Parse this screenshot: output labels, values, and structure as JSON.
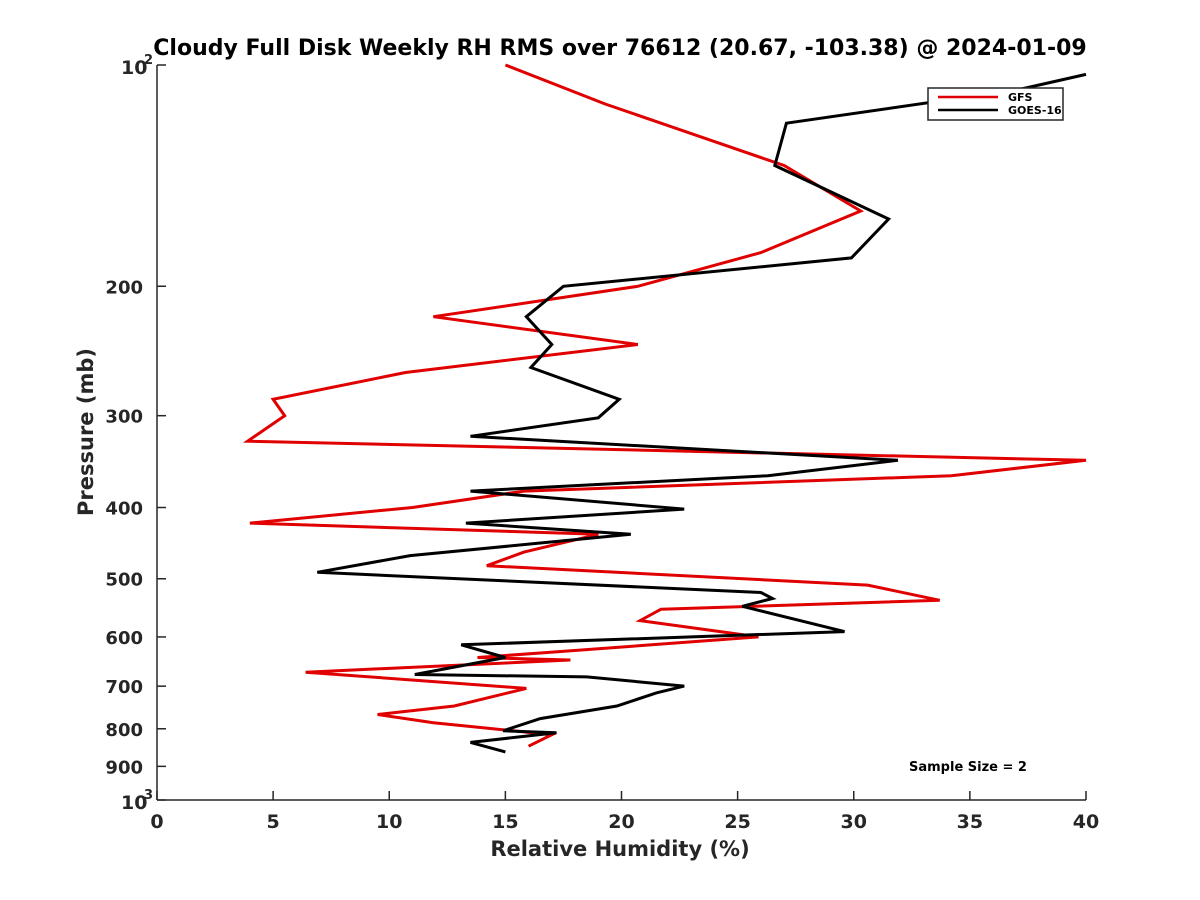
{
  "chart_data": {
    "type": "line",
    "title": "Cloudy Full Disk Weekly RH RMS over 76612 (20.67, -103.38) @ 2024-01-09",
    "xlabel": "Relative Humidity (%)",
    "ylabel": "Pressure (mb)",
    "xlim": [
      0,
      40
    ],
    "ylim": [
      100,
      1000
    ],
    "yscale": "log",
    "y_reversed": true,
    "grid": false,
    "legend_position": "top-right",
    "x_ticks": [
      "0",
      "5",
      "10",
      "15",
      "20",
      "25",
      "30",
      "35",
      "40"
    ],
    "y_ticks": [
      {
        "value": 100,
        "base": "10",
        "exp": "2"
      },
      {
        "value": 200,
        "label": "200"
      },
      {
        "value": 300,
        "label": "300"
      },
      {
        "value": 400,
        "label": "400"
      },
      {
        "value": 500,
        "label": "500"
      },
      {
        "value": 600,
        "label": "600"
      },
      {
        "value": 700,
        "label": "700"
      },
      {
        "value": 800,
        "label": "800"
      },
      {
        "value": 900,
        "label": "900"
      },
      {
        "value": 1000,
        "base": "10",
        "exp": "3"
      }
    ],
    "series": [
      {
        "name": "GFS",
        "color": "#e00000",
        "points": [
          [
            15.0,
            100
          ],
          [
            19.3,
            113
          ],
          [
            27.0,
            137
          ],
          [
            30.3,
            158
          ],
          [
            26.0,
            180
          ],
          [
            20.7,
            200
          ],
          [
            11.9,
            220
          ],
          [
            20.7,
            240
          ],
          [
            10.7,
            262
          ],
          [
            5.0,
            285
          ],
          [
            5.5,
            300
          ],
          [
            3.9,
            325
          ],
          [
            40.0,
            345
          ],
          [
            34.2,
            362
          ],
          [
            15.8,
            380
          ],
          [
            11.0,
            400
          ],
          [
            4.0,
            420
          ],
          [
            19.0,
            435
          ],
          [
            15.8,
            460
          ],
          [
            14.2,
            480
          ],
          [
            30.6,
            510
          ],
          [
            33.7,
            535
          ],
          [
            21.7,
            550
          ],
          [
            20.8,
            570
          ],
          [
            25.9,
            600
          ],
          [
            16.8,
            630
          ],
          [
            13.8,
            640
          ],
          [
            17.8,
            645
          ],
          [
            6.4,
            670
          ],
          [
            15.9,
            705
          ],
          [
            12.8,
            745
          ],
          [
            9.5,
            765
          ],
          [
            11.9,
            785
          ],
          [
            17.0,
            815
          ],
          [
            16.0,
            845
          ]
        ]
      },
      {
        "name": "GOES-16",
        "color": "#000000",
        "points": [
          [
            40.0,
            103
          ],
          [
            37.1,
            108
          ],
          [
            27.1,
            120
          ],
          [
            26.6,
            137
          ],
          [
            31.5,
            162
          ],
          [
            29.9,
            183
          ],
          [
            17.5,
            200
          ],
          [
            15.9,
            220
          ],
          [
            17.0,
            240
          ],
          [
            16.1,
            258
          ],
          [
            19.9,
            285
          ],
          [
            19.0,
            302
          ],
          [
            13.5,
            320
          ],
          [
            31.9,
            345
          ],
          [
            26.3,
            362
          ],
          [
            13.5,
            380
          ],
          [
            22.7,
            402
          ],
          [
            13.3,
            420
          ],
          [
            20.4,
            435
          ],
          [
            10.9,
            465
          ],
          [
            6.9,
            490
          ],
          [
            26.0,
            522
          ],
          [
            26.5,
            532
          ],
          [
            25.2,
            545
          ],
          [
            29.6,
            590
          ],
          [
            13.1,
            615
          ],
          [
            15.0,
            640
          ],
          [
            11.1,
            675
          ],
          [
            18.5,
            680
          ],
          [
            22.7,
            700
          ],
          [
            21.5,
            715
          ],
          [
            19.8,
            745
          ],
          [
            16.5,
            775
          ],
          [
            14.9,
            805
          ],
          [
            17.2,
            810
          ],
          [
            13.5,
            835
          ],
          [
            15.0,
            860
          ]
        ]
      }
    ],
    "annotations": [
      {
        "text": "Sample Size = 2",
        "x": 33.5,
        "y": 900
      }
    ]
  }
}
